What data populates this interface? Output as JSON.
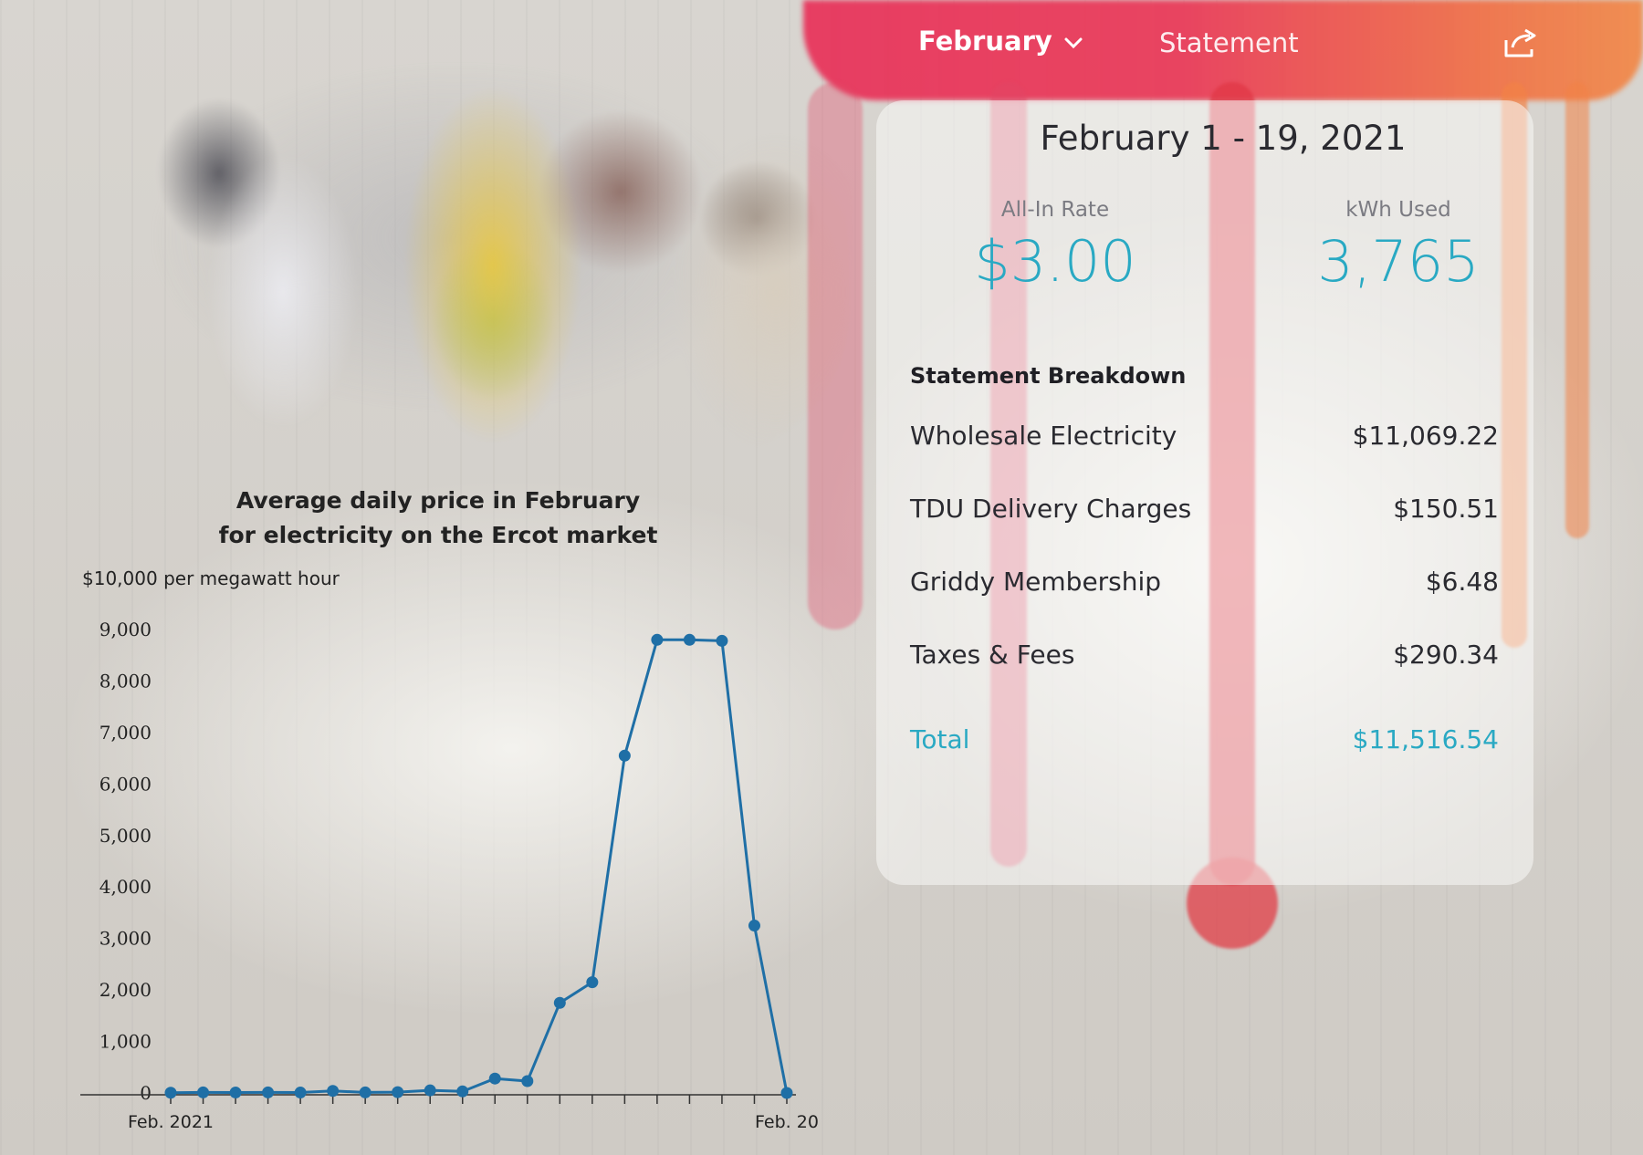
{
  "header": {
    "month_tab": "February",
    "statement_tab": "Statement",
    "icons": {
      "month_dropdown": "chevron-down-icon",
      "share": "share-icon"
    }
  },
  "bill": {
    "period": "February 1 - 19, 2021",
    "all_in_rate_label": "All-In Rate",
    "all_in_rate_value": "$3.00",
    "kwh_label": "kWh Used",
    "kwh_value": "3,765",
    "breakdown_title": "Statement Breakdown",
    "items": [
      {
        "label": "Wholesale Electricity",
        "amount": "$11,069.22"
      },
      {
        "label": "TDU Delivery Charges",
        "amount": "$150.51"
      },
      {
        "label": "Griddy Membership",
        "amount": "$6.48"
      },
      {
        "label": "Taxes & Fees",
        "amount": "$290.34"
      }
    ],
    "total_label": "Total",
    "total_amount": "$11,516.54",
    "accent_color": "#29a9c3"
  },
  "chart_data": {
    "type": "line",
    "title_line1": "Average daily price in February",
    "title_line2": "for electricity on the Ercot market",
    "unit_label": "$10,000 per megawatt hour",
    "x_tick_labels": [
      {
        "day": 1,
        "label": "Feb. 2021"
      },
      {
        "day": 20,
        "label": "Feb. 20"
      }
    ],
    "x": [
      1,
      2,
      3,
      4,
      5,
      6,
      7,
      8,
      9,
      10,
      11,
      12,
      13,
      14,
      15,
      16,
      17,
      18,
      19,
      20
    ],
    "values": [
      5,
      10,
      8,
      10,
      8,
      40,
      10,
      15,
      50,
      30,
      280,
      230,
      1750,
      2150,
      6550,
      8800,
      8800,
      8780,
      3250,
      0
    ],
    "y_ticks": [
      0,
      1000,
      2000,
      3000,
      4000,
      5000,
      6000,
      7000,
      8000,
      9000
    ],
    "y_tick_labels": [
      "0",
      "1,000",
      "2,000",
      "3,000",
      "4,000",
      "5,000",
      "6,000",
      "7,000",
      "8,000",
      "9,000"
    ],
    "ylim": [
      0,
      9000
    ],
    "xlim": [
      1,
      20
    ],
    "line_color": "#1f6fa6",
    "grid": false
  }
}
